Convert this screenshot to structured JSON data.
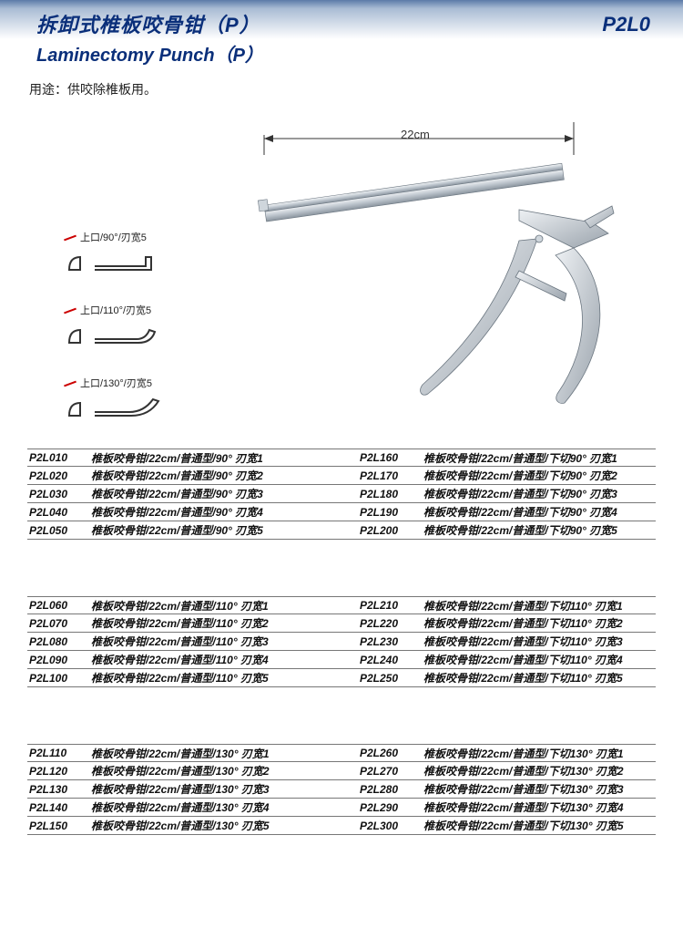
{
  "header": {
    "title_cn": "拆卸式椎板咬骨钳（P）",
    "title_en": "Laminectomy Punch（P）",
    "code": "P2L0"
  },
  "usage": "用途：供咬除椎板用。",
  "figure": {
    "length_label": "22cm",
    "tips": [
      {
        "label": "上口/90°/刃宽5"
      },
      {
        "label": "上口/110°/刃宽5"
      },
      {
        "label": "上口/130°/刃宽5"
      }
    ]
  },
  "blocks": [
    {
      "rows": [
        {
          "lcode": "P2L010",
          "ldesc": "椎板咬骨钳/22cm/普通型/90° 刃宽1",
          "rcode": "P2L160",
          "rdesc": "椎板咬骨钳/22cm/普通型/下切90° 刃宽1"
        },
        {
          "lcode": "P2L020",
          "ldesc": "椎板咬骨钳/22cm/普通型/90° 刃宽2",
          "rcode": "P2L170",
          "rdesc": "椎板咬骨钳/22cm/普通型/下切90° 刃宽2"
        },
        {
          "lcode": "P2L030",
          "ldesc": "椎板咬骨钳/22cm/普通型/90° 刃宽3",
          "rcode": "P2L180",
          "rdesc": "椎板咬骨钳/22cm/普通型/下切90° 刃宽3"
        },
        {
          "lcode": "P2L040",
          "ldesc": "椎板咬骨钳/22cm/普通型/90° 刃宽4",
          "rcode": "P2L190",
          "rdesc": "椎板咬骨钳/22cm/普通型/下切90° 刃宽4"
        },
        {
          "lcode": "P2L050",
          "ldesc": "椎板咬骨钳/22cm/普通型/90° 刃宽5",
          "rcode": "P2L200",
          "rdesc": "椎板咬骨钳/22cm/普通型/下切90° 刃宽5"
        }
      ]
    },
    {
      "rows": [
        {
          "lcode": "P2L060",
          "ldesc": "椎板咬骨钳/22cm/普通型/110° 刃宽1",
          "rcode": "P2L210",
          "rdesc": "椎板咬骨钳/22cm/普通型/下切110° 刃宽1"
        },
        {
          "lcode": "P2L070",
          "ldesc": "椎板咬骨钳/22cm/普通型/110° 刃宽2",
          "rcode": "P2L220",
          "rdesc": "椎板咬骨钳/22cm/普通型/下切110° 刃宽2"
        },
        {
          "lcode": "P2L080",
          "ldesc": "椎板咬骨钳/22cm/普通型/110° 刃宽3",
          "rcode": "P2L230",
          "rdesc": "椎板咬骨钳/22cm/普通型/下切110° 刃宽3"
        },
        {
          "lcode": "P2L090",
          "ldesc": "椎板咬骨钳/22cm/普通型/110° 刃宽4",
          "rcode": "P2L240",
          "rdesc": "椎板咬骨钳/22cm/普通型/下切110° 刃宽4"
        },
        {
          "lcode": "P2L100",
          "ldesc": "椎板咬骨钳/22cm/普通型/110° 刃宽5",
          "rcode": "P2L250",
          "rdesc": "椎板咬骨钳/22cm/普通型/下切110° 刃宽5"
        }
      ]
    },
    {
      "rows": [
        {
          "lcode": "P2L110",
          "ldesc": "椎板咬骨钳/22cm/普通型/130° 刃宽1",
          "rcode": "P2L260",
          "rdesc": "椎板咬骨钳/22cm/普通型/下切130° 刃宽1"
        },
        {
          "lcode": "P2L120",
          "ldesc": "椎板咬骨钳/22cm/普通型/130° 刃宽2",
          "rcode": "P2L270",
          "rdesc": "椎板咬骨钳/22cm/普通型/下切130° 刃宽2"
        },
        {
          "lcode": "P2L130",
          "ldesc": "椎板咬骨钳/22cm/普通型/130° 刃宽3",
          "rcode": "P2L280",
          "rdesc": "椎板咬骨钳/22cm/普通型/下切130° 刃宽3"
        },
        {
          "lcode": "P2L140",
          "ldesc": "椎板咬骨钳/22cm/普通型/130° 刃宽4",
          "rcode": "P2L290",
          "rdesc": "椎板咬骨钳/22cm/普通型/下切130° 刃宽4"
        },
        {
          "lcode": "P2L150",
          "ldesc": "椎板咬骨钳/22cm/普通型/130° 刃宽5",
          "rcode": "P2L300",
          "rdesc": "椎板咬骨钳/22cm/普通型/下切130° 刃宽5"
        }
      ]
    }
  ]
}
